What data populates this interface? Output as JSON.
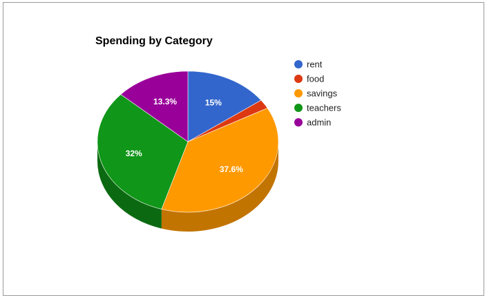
{
  "chart_data": {
    "type": "pie",
    "title": "Spending by Category",
    "legend_position": "right",
    "three_d": true,
    "slices": [
      {
        "label": "rent",
        "value": 15,
        "color": "#3366cc",
        "side_color": "#1f4799",
        "data_label": "15%"
      },
      {
        "label": "food",
        "value": 2.1,
        "color": "#dc3912",
        "side_color": "#9c2a0d",
        "data_label": ""
      },
      {
        "label": "savings",
        "value": 37.6,
        "color": "#ff9900",
        "side_color": "#c27400",
        "data_label": "37.6%"
      },
      {
        "label": "teachers",
        "value": 32,
        "color": "#109618",
        "side_color": "#0b6a11",
        "data_label": "32%"
      },
      {
        "label": "admin",
        "value": 13.3,
        "color": "#990099",
        "side_color": "#6b006b",
        "data_label": "13.3%"
      }
    ]
  }
}
